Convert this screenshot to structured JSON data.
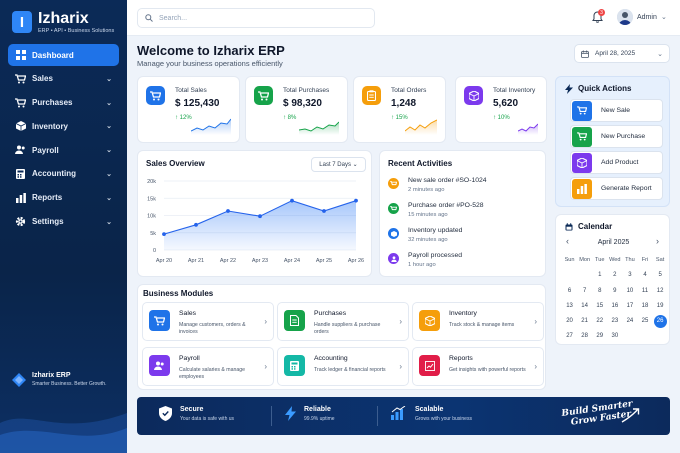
{
  "app": {
    "name": "Izharix",
    "tagline": "ERP • API • Business Solutions",
    "logo_letter": "I"
  },
  "sidebar": {
    "items": [
      {
        "label": "Dashboard",
        "icon": "dashboard-icon",
        "active": true,
        "chevron": ""
      },
      {
        "label": "Sales",
        "icon": "cart-icon",
        "chevron": "⌄"
      },
      {
        "label": "Purchases",
        "icon": "cart-icon",
        "chevron": "⌄"
      },
      {
        "label": "Inventory",
        "icon": "box-icon",
        "chevron": "⌄"
      },
      {
        "label": "Payroll",
        "icon": "users-icon",
        "chevron": "⌄"
      },
      {
        "label": "Accounting",
        "icon": "calculator-icon",
        "chevron": "⌄"
      },
      {
        "label": "Reports",
        "icon": "chart-icon",
        "chevron": "⌄"
      },
      {
        "label": "Settings",
        "icon": "gear-icon",
        "chevron": "⌄"
      }
    ],
    "brand_name": "Izharix ERP",
    "brand_tagline": "Smarter Business. Better Growth."
  },
  "topbar": {
    "search_placeholder": "Search...",
    "notification_count": "3",
    "user_name": "Admin"
  },
  "header": {
    "title": "Welcome to Izharix ERP",
    "subtitle": "Manage your business operations efficiently",
    "date": "April 28, 2025"
  },
  "stats": [
    {
      "label": "Total Sales",
      "value": "$ 125,430",
      "change": "12%",
      "color": "#1f73e8"
    },
    {
      "label": "Total Purchases",
      "value": "$ 98,320",
      "change": "8%",
      "color": "#16a34a"
    },
    {
      "label": "Total Orders",
      "value": "1,248",
      "change": "15%",
      "color": "#f59e0b"
    },
    {
      "label": "Total Inventory",
      "value": "5,620",
      "change": "10%",
      "color": "#7c3aed"
    }
  ],
  "sales_overview": {
    "title": "Sales Overview",
    "range": "Last 7 Days"
  },
  "chart_data": {
    "type": "area",
    "x": [
      "Apr 20",
      "Apr 21",
      "Apr 22",
      "Apr 23",
      "Apr 24",
      "Apr 25",
      "Apr 26"
    ],
    "series": [
      {
        "values": [
          4.6,
          7.3,
          11.3,
          9.8,
          14.3,
          11.3,
          14.3
        ]
      }
    ],
    "yticks": [
      "0",
      "5k",
      "10k",
      "15k",
      "20k"
    ],
    "ylim": [
      0,
      20
    ],
    "grid": true
  },
  "activities": {
    "title": "Recent Activities",
    "items": [
      {
        "title": "New sale order #SO-1024",
        "time": "2 minutes ago",
        "color": "#f59e0b"
      },
      {
        "title": "Purchase order #PO-528",
        "time": "15 minutes ago",
        "color": "#16a34a"
      },
      {
        "title": "Inventory updated",
        "time": "32 minutes ago",
        "color": "#1f73e8"
      },
      {
        "title": "Payroll processed",
        "time": "1 hour ago",
        "color": "#7c3aed"
      }
    ]
  },
  "quick_actions": {
    "title": "Quick Actions",
    "items": [
      {
        "label": "New Sale",
        "color": "#1f73e8"
      },
      {
        "label": "New Purchase",
        "color": "#16a34a"
      },
      {
        "label": "Add Product",
        "color": "#7c3aed"
      },
      {
        "label": "Generate Report",
        "color": "#f59e0b"
      }
    ]
  },
  "calendar": {
    "title": "Calendar",
    "month": "April 2025",
    "prev": "‹",
    "next": "›",
    "weekdays": [
      "Sun",
      "Mon",
      "Tue",
      "Wed",
      "Thu",
      "Fri",
      "Sat"
    ],
    "today": "26",
    "weeks": [
      [
        "",
        "",
        "1",
        "2",
        "3",
        "4",
        "5"
      ],
      [
        "6",
        "7",
        "8",
        "9",
        "10",
        "11",
        "12"
      ],
      [
        "13",
        "14",
        "15",
        "16",
        "17",
        "18",
        "19"
      ],
      [
        "20",
        "21",
        "22",
        "23",
        "24",
        "25",
        "26"
      ],
      [
        "27",
        "28",
        "29",
        "30",
        "",
        "",
        ""
      ]
    ]
  },
  "modules": {
    "title": "Business Modules",
    "items": [
      {
        "title": "Sales",
        "desc": "Manage customers, orders & invoices",
        "color": "#1f73e8"
      },
      {
        "title": "Purchases",
        "desc": "Handle suppliers & purchase orders",
        "color": "#16a34a"
      },
      {
        "title": "Inventory",
        "desc": "Track stock & manage items",
        "color": "#f59e0b"
      },
      {
        "title": "Payroll",
        "desc": "Calculate salaries & manage employees",
        "color": "#7c3aed"
      },
      {
        "title": "Accounting",
        "desc": "Track ledger & financial reports",
        "color": "#14b8a6"
      },
      {
        "title": "Reports",
        "desc": "Get insights with powerful reports",
        "color": "#e11d48"
      }
    ]
  },
  "banner": {
    "items": [
      {
        "title": "Secure",
        "desc": "Your data is safe with us"
      },
      {
        "title": "Reliable",
        "desc": "99.9% uptime"
      },
      {
        "title": "Scalable",
        "desc": "Grows with your business"
      }
    ],
    "slogan_line1": "Build Smarter",
    "slogan_line2": "Grow Faster"
  }
}
